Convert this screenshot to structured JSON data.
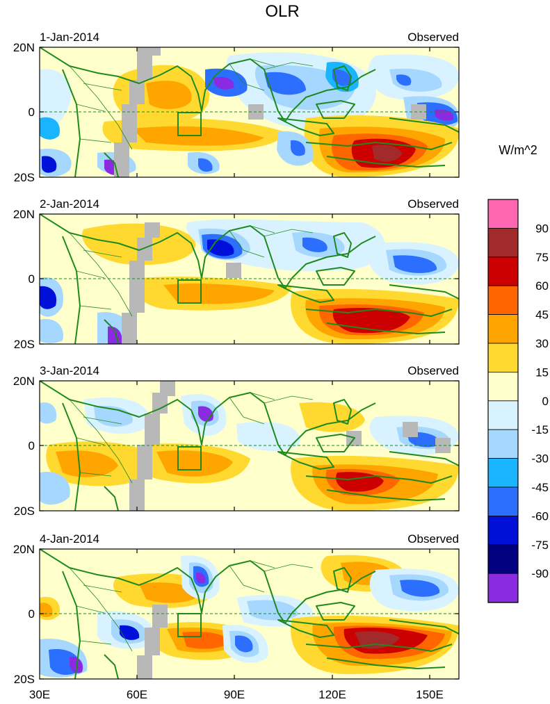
{
  "title": "OLR",
  "units": "W/m^2",
  "panel_tag": "Observed",
  "latitude_labels": [
    "20N",
    "0",
    "20S"
  ],
  "longitude_labels": [
    "30E",
    "60E",
    "90E",
    "120E",
    "150E"
  ],
  "panels": [
    {
      "date": "1-Jan-2014"
    },
    {
      "date": "2-Jan-2014"
    },
    {
      "date": "3-Jan-2014"
    },
    {
      "date": "4-Jan-2014"
    }
  ],
  "colorbar": {
    "labels": [
      "90",
      "75",
      "60",
      "45",
      "30",
      "15",
      "0",
      "-15",
      "-30",
      "-45",
      "-60",
      "-75",
      "-90"
    ],
    "colors": [
      "#ff66b2",
      "#a32a2a",
      "#cc0000",
      "#ff6600",
      "#ffa500",
      "#ffd92f",
      "#ffffcc",
      "#d8f3ff",
      "#a6d8ff",
      "#1ab4ff",
      "#2c6fff",
      "#0010d8",
      "#000080",
      "#8a2be2"
    ]
  },
  "colors": {
    "land_outline": "#1e8a1e",
    "missing_data": "#b8b8b8",
    "background": "#ffffcc"
  }
}
